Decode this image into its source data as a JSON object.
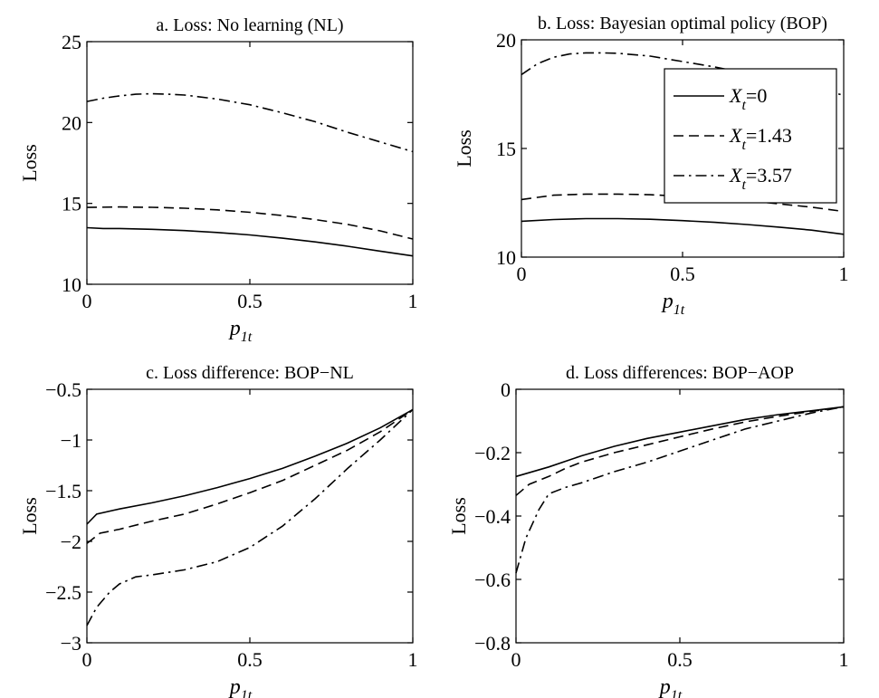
{
  "chart_data": [
    {
      "type": "line",
      "title": "a. Loss: No learning (NL)",
      "xlabel": "p",
      "xlabel_sub": "1t",
      "ylabel": "Loss",
      "xlim": [
        0,
        1
      ],
      "ylim": [
        10,
        25
      ],
      "xticks": [
        0,
        0.5,
        1
      ],
      "xtick_labels": [
        "0",
        "0.5",
        "1"
      ],
      "yticks": [
        10,
        15,
        20,
        25
      ],
      "ytick_labels": [
        "10",
        "15",
        "20",
        "25"
      ],
      "grid": false,
      "series": [
        {
          "x": [
            0,
            0.05,
            0.1,
            0.2,
            0.3,
            0.4,
            0.5,
            0.6,
            0.7,
            0.8,
            0.9,
            1.0
          ],
          "y": [
            13.5,
            13.45,
            13.45,
            13.4,
            13.32,
            13.2,
            13.05,
            12.85,
            12.62,
            12.35,
            12.05,
            11.75
          ],
          "dash": "solid"
        },
        {
          "x": [
            0,
            0.1,
            0.2,
            0.3,
            0.4,
            0.5,
            0.6,
            0.7,
            0.8,
            0.9,
            1.0
          ],
          "y": [
            14.75,
            14.78,
            14.76,
            14.7,
            14.6,
            14.45,
            14.25,
            14.0,
            13.7,
            13.3,
            12.8
          ],
          "dash": "dashed"
        },
        {
          "x": [
            0,
            0.05,
            0.1,
            0.15,
            0.2,
            0.25,
            0.3,
            0.4,
            0.5,
            0.6,
            0.7,
            0.8,
            0.9,
            1.0
          ],
          "y": [
            21.3,
            21.5,
            21.65,
            21.75,
            21.78,
            21.75,
            21.7,
            21.45,
            21.1,
            20.6,
            20.05,
            19.4,
            18.8,
            18.2
          ],
          "dash": "dashdot"
        }
      ]
    },
    {
      "type": "line",
      "title": "b. Loss: Bayesian optimal policy (BOP)",
      "xlabel": "p",
      "xlabel_sub": "1t",
      "ylabel": "Loss",
      "xlim": [
        0,
        1
      ],
      "ylim": [
        10,
        20
      ],
      "xticks": [
        0,
        0.5,
        1
      ],
      "xtick_labels": [
        "0",
        "0.5",
        "1"
      ],
      "yticks": [
        10,
        15,
        20
      ],
      "ytick_labels": [
        "10",
        "15",
        "20"
      ],
      "grid": false,
      "legend": "upper-right",
      "series": [
        {
          "name_main": "X",
          "name_sub": "t",
          "name_rest": "=0",
          "x": [
            0,
            0.1,
            0.2,
            0.3,
            0.4,
            0.5,
            0.6,
            0.7,
            0.8,
            0.9,
            1.0
          ],
          "y": [
            11.65,
            11.73,
            11.77,
            11.77,
            11.74,
            11.68,
            11.6,
            11.5,
            11.38,
            11.24,
            11.05
          ],
          "dash": "solid"
        },
        {
          "name_main": "X",
          "name_sub": "t",
          "name_rest": "=1.43",
          "x": [
            0,
            0.1,
            0.2,
            0.3,
            0.4,
            0.5,
            0.6,
            0.7,
            0.8,
            0.9,
            1.0
          ],
          "y": [
            12.65,
            12.85,
            12.9,
            12.9,
            12.87,
            12.8,
            12.7,
            12.6,
            12.45,
            12.3,
            12.1
          ],
          "dash": "dashed"
        },
        {
          "name_main": "X",
          "name_sub": "t",
          "name_rest": "=3.57",
          "x": [
            0,
            0.05,
            0.1,
            0.15,
            0.2,
            0.25,
            0.3,
            0.4,
            0.5,
            0.6,
            0.7,
            0.8,
            0.9,
            1.0
          ],
          "y": [
            18.4,
            18.9,
            19.2,
            19.35,
            19.4,
            19.4,
            19.38,
            19.25,
            19.0,
            18.75,
            18.45,
            18.15,
            17.8,
            17.45
          ],
          "dash": "dashdot"
        }
      ]
    },
    {
      "type": "line",
      "title": "c. Loss difference: BOP−NL",
      "xlabel": "p",
      "xlabel_sub": "1t",
      "ylabel": "Loss",
      "xlim": [
        0,
        1
      ],
      "ylim": [
        -3,
        -0.5
      ],
      "xticks": [
        0,
        0.5,
        1
      ],
      "xtick_labels": [
        "0",
        "0.5",
        "1"
      ],
      "yticks": [
        -3,
        -2.5,
        -2,
        -1.5,
        -1,
        -0.5
      ],
      "ytick_labels": [
        "−3",
        "−2.5",
        "−2",
        "−1.5",
        "−1",
        "−0.5"
      ],
      "grid": false,
      "series": [
        {
          "x": [
            0,
            0.03,
            0.1,
            0.2,
            0.3,
            0.4,
            0.5,
            0.6,
            0.7,
            0.8,
            0.9,
            1.0
          ],
          "y": [
            -1.83,
            -1.73,
            -1.68,
            -1.62,
            -1.55,
            -1.47,
            -1.38,
            -1.28,
            -1.16,
            -1.03,
            -0.88,
            -0.7
          ],
          "dash": "solid"
        },
        {
          "x": [
            0,
            0.04,
            0.1,
            0.2,
            0.3,
            0.4,
            0.5,
            0.6,
            0.7,
            0.8,
            0.9,
            1.0
          ],
          "y": [
            -2.02,
            -1.92,
            -1.88,
            -1.8,
            -1.73,
            -1.63,
            -1.52,
            -1.4,
            -1.25,
            -1.1,
            -0.92,
            -0.7
          ],
          "dash": "dashed"
        },
        {
          "x": [
            0,
            0.03,
            0.07,
            0.1,
            0.15,
            0.2,
            0.3,
            0.4,
            0.5,
            0.6,
            0.7,
            0.8,
            0.9,
            1.0
          ],
          "y": [
            -2.83,
            -2.65,
            -2.5,
            -2.42,
            -2.35,
            -2.33,
            -2.28,
            -2.2,
            -2.06,
            -1.85,
            -1.58,
            -1.28,
            -1.0,
            -0.7
          ],
          "dash": "dashdot"
        }
      ]
    },
    {
      "type": "line",
      "title": "d. Loss differences: BOP−AOP",
      "xlabel": "p",
      "xlabel_sub": "1t",
      "ylabel": "Loss",
      "xlim": [
        0,
        1
      ],
      "ylim": [
        -0.8,
        0
      ],
      "xticks": [
        0,
        0.5,
        1
      ],
      "xtick_labels": [
        "0",
        "0.5",
        "1"
      ],
      "yticks": [
        -0.8,
        -0.6,
        -0.4,
        -0.2,
        0
      ],
      "ytick_labels": [
        "−0.8",
        "−0.6",
        "−0.4",
        "−0.2",
        "0"
      ],
      "grid": false,
      "series": [
        {
          "x": [
            0,
            0.1,
            0.2,
            0.3,
            0.4,
            0.5,
            0.6,
            0.7,
            0.8,
            0.9,
            1.0
          ],
          "y": [
            -0.275,
            -0.245,
            -0.21,
            -0.18,
            -0.155,
            -0.135,
            -0.115,
            -0.095,
            -0.08,
            -0.068,
            -0.055
          ],
          "dash": "solid"
        },
        {
          "x": [
            0,
            0.04,
            0.1,
            0.15,
            0.2,
            0.3,
            0.4,
            0.5,
            0.6,
            0.7,
            0.8,
            0.9,
            1.0
          ],
          "y": [
            -0.335,
            -0.3,
            -0.275,
            -0.25,
            -0.23,
            -0.2,
            -0.175,
            -0.15,
            -0.125,
            -0.103,
            -0.085,
            -0.07,
            -0.055
          ],
          "dash": "dashed"
        },
        {
          "x": [
            0,
            0.03,
            0.07,
            0.1,
            0.15,
            0.2,
            0.3,
            0.4,
            0.5,
            0.6,
            0.7,
            0.8,
            0.9,
            1.0
          ],
          "y": [
            -0.58,
            -0.47,
            -0.38,
            -0.33,
            -0.31,
            -0.295,
            -0.26,
            -0.23,
            -0.195,
            -0.16,
            -0.125,
            -0.1,
            -0.075,
            -0.055
          ],
          "dash": "dashdot"
        }
      ]
    }
  ]
}
